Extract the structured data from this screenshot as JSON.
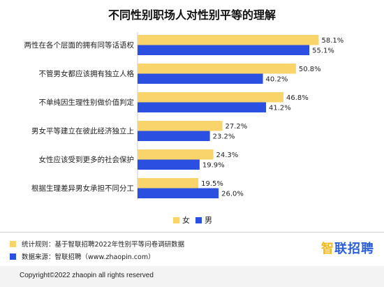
{
  "chart_data": {
    "type": "bar",
    "orientation": "horizontal",
    "title": "不同性别职场人对性别平等的理解",
    "categories": [
      "两性在各个层面的拥有同等话语权",
      "不管男女都应该拥有独立人格",
      "不单纯因生理性别做价值判定",
      "男女平等建立在彼此经济独立上",
      "女性应该受到更多的社会保护",
      "根据生理差异男女承担不同分工"
    ],
    "series": [
      {
        "name": "女",
        "color": "#f9d46b",
        "values": [
          58.1,
          50.8,
          46.8,
          27.2,
          24.3,
          19.5
        ],
        "labels": [
          "58.1%",
          "50.8%",
          "46.8%",
          "27.2%",
          "24.3%",
          "19.5%"
        ]
      },
      {
        "name": "男",
        "color": "#2b4fe0",
        "values": [
          55.1,
          40.2,
          41.2,
          23.2,
          19.9,
          26.0
        ],
        "labels": [
          "55.1%",
          "40.2%",
          "41.2%",
          "23.2%",
          "19.9%",
          "26.0%"
        ]
      }
    ],
    "xlim": [
      0,
      60
    ],
    "grid": false,
    "legend_position": "bottom"
  },
  "legend": {
    "female": "女",
    "male": "男"
  },
  "notes": [
    {
      "text": "统计规则：基于智联招聘2022年性别平等问卷调研数据",
      "color": "#f9d46b"
    },
    {
      "text": "数据来源：智联招聘（www.zhaopin.com）",
      "color": "#2b4fe0"
    }
  ],
  "logo": {
    "mark": "智",
    "text": "联招聘"
  },
  "copyright": "Copyright©2022 zhaopin all rights reserved"
}
